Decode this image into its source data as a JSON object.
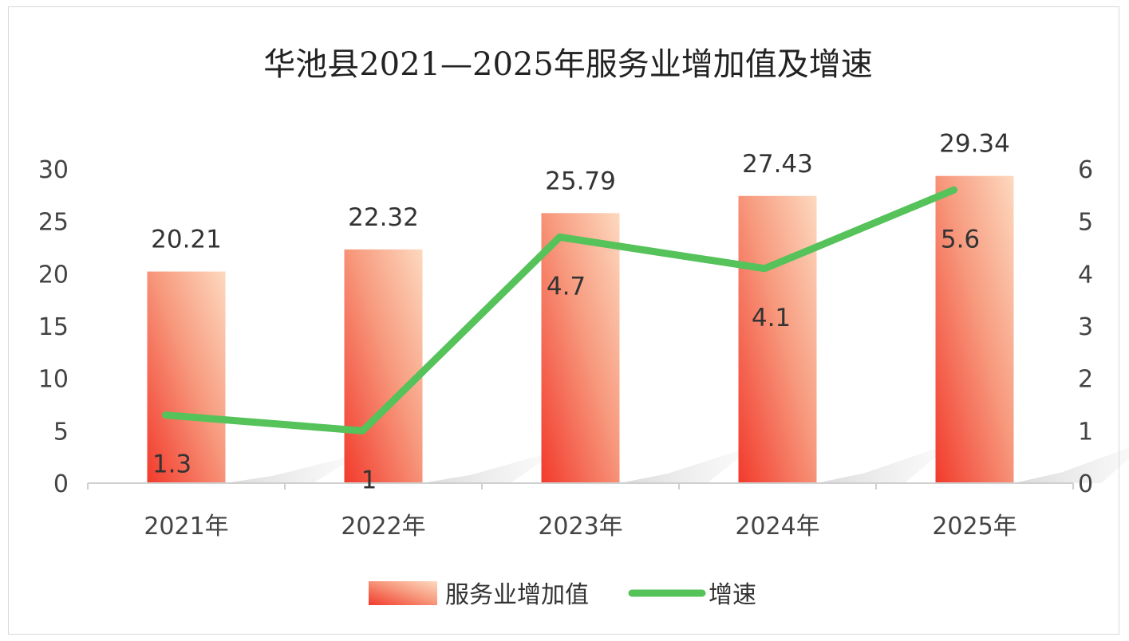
{
  "chart_data": {
    "type": "bar",
    "title": "华池县2021—2025年服务业增加值及增速",
    "categories": [
      "2021年",
      "2022年",
      "2023年",
      "2024年",
      "2025年"
    ],
    "series": [
      {
        "name": "服务业增加值",
        "type": "bar",
        "axis": "left",
        "values": [
          20.21,
          22.32,
          25.79,
          27.43,
          29.34
        ],
        "labels": [
          "20.21",
          "22.32",
          "25.79",
          "27.43",
          "29.34"
        ],
        "color": "#f24a3a"
      },
      {
        "name": "增速",
        "type": "line",
        "axis": "right",
        "values": [
          1.3,
          1,
          4.7,
          4.1,
          5.6
        ],
        "labels": [
          "1.3",
          "1",
          "4.7",
          "4.1",
          "5.6"
        ],
        "color": "#55c25a"
      }
    ],
    "y_left": {
      "min": 0,
      "max": 30,
      "ticks": [
        "0",
        "5",
        "10",
        "15",
        "20",
        "25",
        "30"
      ]
    },
    "y_right": {
      "min": 0,
      "max": 6,
      "ticks": [
        "0",
        "1",
        "2",
        "3",
        "4",
        "5",
        "6"
      ]
    },
    "grid": false,
    "legend_position": "bottom"
  }
}
